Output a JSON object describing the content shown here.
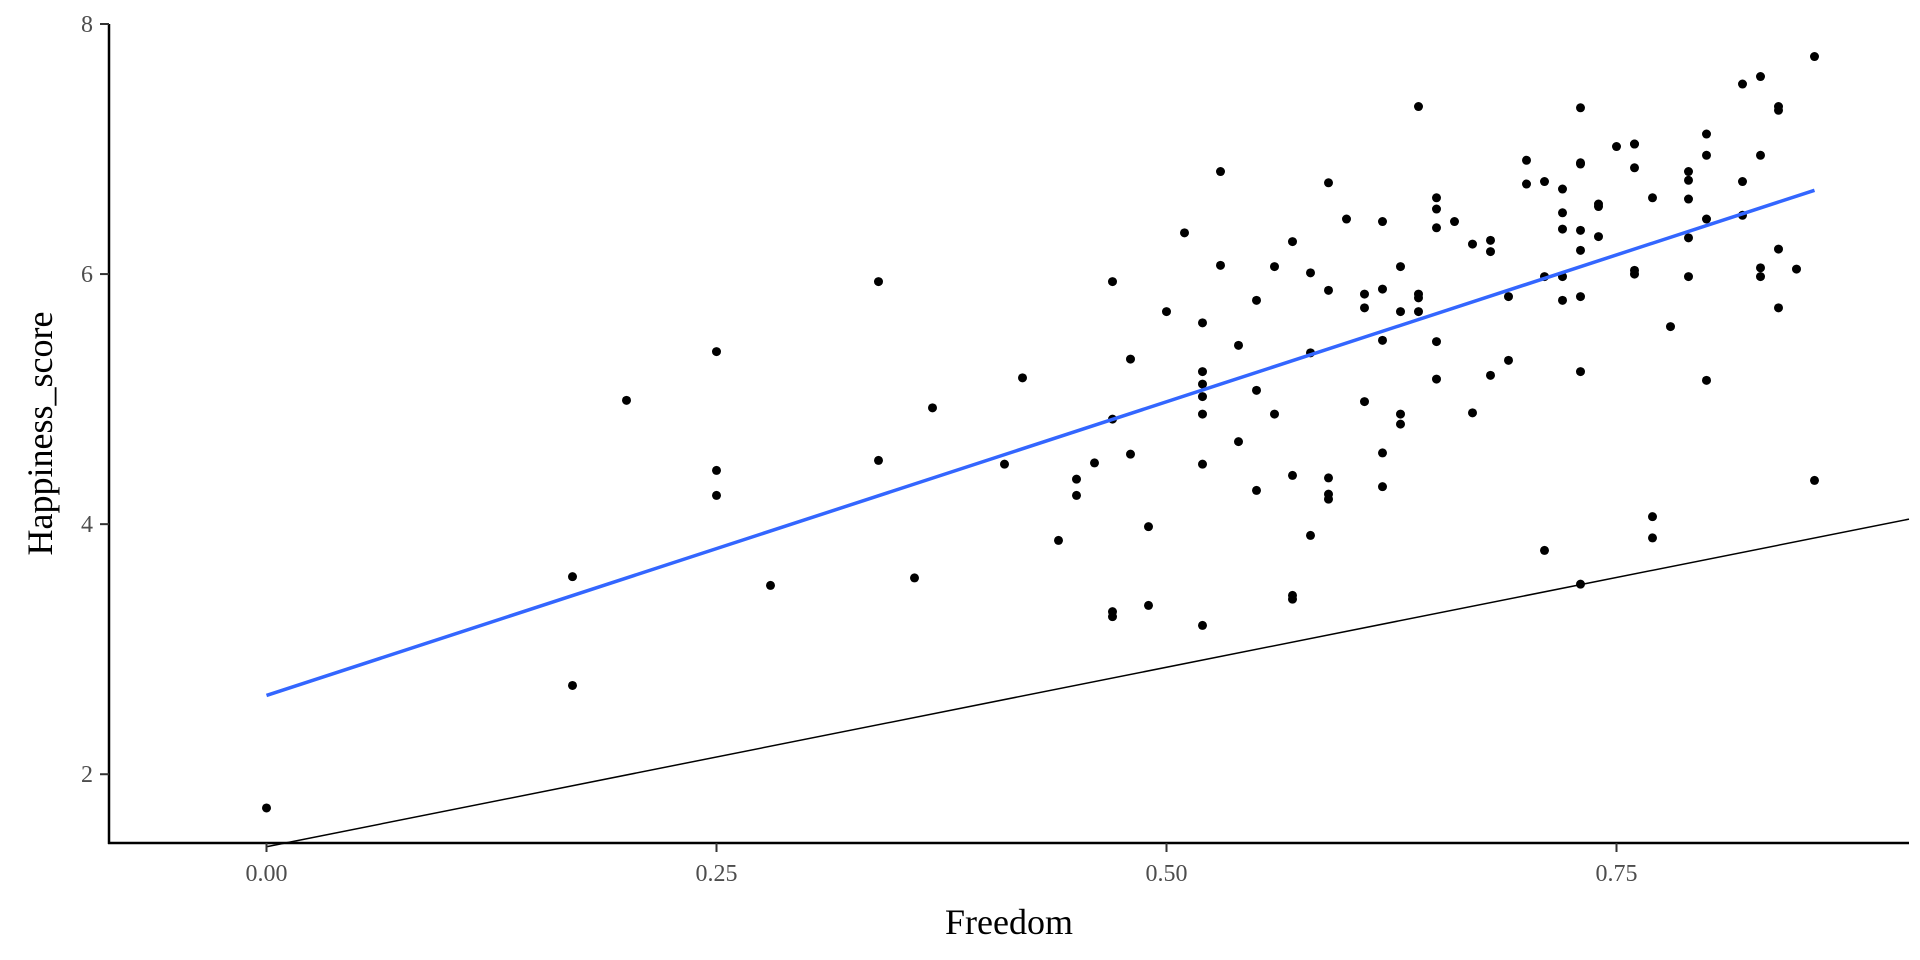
{
  "chart_data": {
    "type": "scatter",
    "title": "",
    "xlabel": "Freedom",
    "ylabel": "Happiness_score",
    "xlim": [
      -0.0875,
      0.9125
    ],
    "ylim": [
      1.45,
      8.0
    ],
    "xticks": [
      0.0,
      0.25,
      0.5,
      0.75
    ],
    "xtick_labels": [
      "0.00",
      "0.25",
      "0.50",
      "0.75"
    ],
    "yticks": [
      2,
      4,
      6,
      8
    ],
    "ytick_labels": [
      "2",
      "4",
      "6",
      "8"
    ],
    "grid": false,
    "legend": "none",
    "points": [
      [
        0.0,
        1.73
      ],
      [
        0.17,
        3.58
      ],
      [
        0.17,
        2.71
      ],
      [
        0.2,
        4.99
      ],
      [
        0.25,
        5.38
      ],
      [
        0.25,
        4.23
      ],
      [
        0.25,
        4.43
      ],
      [
        0.28,
        3.51
      ],
      [
        0.34,
        5.94
      ],
      [
        0.34,
        4.51
      ],
      [
        0.36,
        3.57
      ],
      [
        0.37,
        4.93
      ],
      [
        0.41,
        4.48
      ],
      [
        0.42,
        5.17
      ],
      [
        0.44,
        3.87
      ],
      [
        0.45,
        4.36
      ],
      [
        0.45,
        4.23
      ],
      [
        0.46,
        4.49
      ],
      [
        0.47,
        5.94
      ],
      [
        0.47,
        4.84
      ],
      [
        0.47,
        3.26
      ],
      [
        0.47,
        3.3
      ],
      [
        0.48,
        4.56
      ],
      [
        0.48,
        5.32
      ],
      [
        0.49,
        3.35
      ],
      [
        0.49,
        3.98
      ],
      [
        0.5,
        5.7
      ],
      [
        0.51,
        6.33
      ],
      [
        0.52,
        5.12
      ],
      [
        0.52,
        5.61
      ],
      [
        0.52,
        4.48
      ],
      [
        0.52,
        5.02
      ],
      [
        0.52,
        4.88
      ],
      [
        0.52,
        5.22
      ],
      [
        0.52,
        3.19
      ],
      [
        0.53,
        6.07
      ],
      [
        0.53,
        6.82
      ],
      [
        0.54,
        5.43
      ],
      [
        0.54,
        4.66
      ],
      [
        0.55,
        5.07
      ],
      [
        0.55,
        4.27
      ],
      [
        0.55,
        5.79
      ],
      [
        0.56,
        6.06
      ],
      [
        0.56,
        4.88
      ],
      [
        0.57,
        6.26
      ],
      [
        0.57,
        4.39
      ],
      [
        0.57,
        3.4
      ],
      [
        0.57,
        3.43
      ],
      [
        0.58,
        5.37
      ],
      [
        0.58,
        6.01
      ],
      [
        0.58,
        3.91
      ],
      [
        0.59,
        6.73
      ],
      [
        0.59,
        4.24
      ],
      [
        0.59,
        4.37
      ],
      [
        0.59,
        5.87
      ],
      [
        0.59,
        4.2
      ],
      [
        0.6,
        6.44
      ],
      [
        0.61,
        5.73
      ],
      [
        0.61,
        4.98
      ],
      [
        0.61,
        5.84
      ],
      [
        0.62,
        4.57
      ],
      [
        0.62,
        6.42
      ],
      [
        0.62,
        5.47
      ],
      [
        0.62,
        5.88
      ],
      [
        0.62,
        4.3
      ],
      [
        0.63,
        6.06
      ],
      [
        0.63,
        4.88
      ],
      [
        0.63,
        4.8
      ],
      [
        0.63,
        5.7
      ],
      [
        0.64,
        5.81
      ],
      [
        0.64,
        7.34
      ],
      [
        0.64,
        5.7
      ],
      [
        0.64,
        5.84
      ],
      [
        0.65,
        6.61
      ],
      [
        0.65,
        6.52
      ],
      [
        0.65,
        6.37
      ],
      [
        0.65,
        5.46
      ],
      [
        0.65,
        5.16
      ],
      [
        0.66,
        6.42
      ],
      [
        0.67,
        6.24
      ],
      [
        0.67,
        4.89
      ],
      [
        0.68,
        6.18
      ],
      [
        0.68,
        5.19
      ],
      [
        0.68,
        6.27
      ],
      [
        0.69,
        5.31
      ],
      [
        0.69,
        5.82
      ],
      [
        0.7,
        6.72
      ],
      [
        0.7,
        6.91
      ],
      [
        0.71,
        5.98
      ],
      [
        0.71,
        3.79
      ],
      [
        0.71,
        6.74
      ],
      [
        0.72,
        6.49
      ],
      [
        0.72,
        5.79
      ],
      [
        0.72,
        5.98
      ],
      [
        0.72,
        6.36
      ],
      [
        0.72,
        6.68
      ],
      [
        0.73,
        7.33
      ],
      [
        0.73,
        3.52
      ],
      [
        0.73,
        5.22
      ],
      [
        0.73,
        6.35
      ],
      [
        0.73,
        6.88
      ],
      [
        0.73,
        6.89
      ],
      [
        0.73,
        5.82
      ],
      [
        0.73,
        6.19
      ],
      [
        0.74,
        6.3
      ],
      [
        0.74,
        6.56
      ],
      [
        0.74,
        6.54
      ],
      [
        0.75,
        7.02
      ],
      [
        0.76,
        6.0
      ],
      [
        0.76,
        7.04
      ],
      [
        0.76,
        6.85
      ],
      [
        0.76,
        7.04
      ],
      [
        0.76,
        6.03
      ],
      [
        0.77,
        4.06
      ],
      [
        0.77,
        6.61
      ],
      [
        0.77,
        3.89
      ],
      [
        0.78,
        5.58
      ],
      [
        0.79,
        6.6
      ],
      [
        0.79,
        6.82
      ],
      [
        0.79,
        6.75
      ],
      [
        0.79,
        5.98
      ],
      [
        0.79,
        6.29
      ],
      [
        0.8,
        5.15
      ],
      [
        0.8,
        6.95
      ],
      [
        0.8,
        7.12
      ],
      [
        0.8,
        6.44
      ],
      [
        0.82,
        6.74
      ],
      [
        0.82,
        6.47
      ],
      [
        0.82,
        7.52
      ],
      [
        0.83,
        7.58
      ],
      [
        0.83,
        6.05
      ],
      [
        0.83,
        6.95
      ],
      [
        0.83,
        5.98
      ],
      [
        0.84,
        5.73
      ],
      [
        0.84,
        7.31
      ],
      [
        0.84,
        6.2
      ],
      [
        0.84,
        7.34
      ],
      [
        0.85,
        6.04
      ],
      [
        0.86,
        7.74
      ],
      [
        0.86,
        4.35
      ]
    ],
    "fit_line": {
      "color": "#3366ff",
      "x": [
        0.0,
        0.86
      ],
      "y": [
        2.63,
        6.67
      ]
    },
    "reference_line": {
      "color": "#000000",
      "x": [
        0.0,
        0.9125
      ],
      "y": [
        1.42,
        4.04
      ]
    }
  }
}
